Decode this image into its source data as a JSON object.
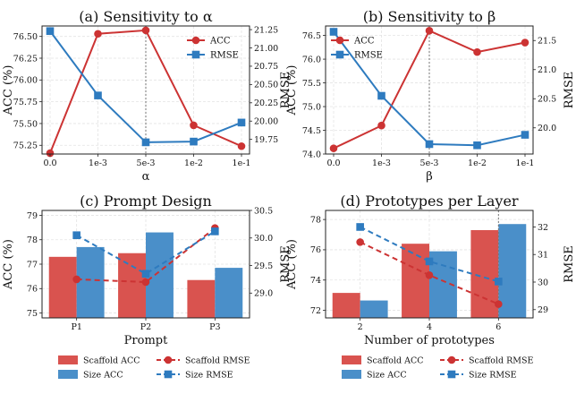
{
  "colors": {
    "red": "#cc3333",
    "blue": "#2e7bbf",
    "bar_red": "#d9534f",
    "bar_blue": "#4a8fc9",
    "grid": "#e3e3e3"
  },
  "chart_data": [
    {
      "type": "line",
      "title": "(a) Sensitivity to α",
      "xlabel": "α",
      "ylabel": "ACC (%)",
      "y2label": "RMSE",
      "categories": [
        "0.0",
        "1e-3",
        "5e-3",
        "1e-2",
        "1e-1"
      ],
      "ylim": [
        75.15,
        76.62
      ],
      "y2lim": [
        19.55,
        21.3
      ],
      "yticks": [
        75.25,
        75.5,
        75.75,
        76.0,
        76.25,
        76.5
      ],
      "y2ticks": [
        19.75,
        20.0,
        20.25,
        20.5,
        20.75,
        21.0,
        21.25
      ],
      "series": [
        {
          "name": "ACC",
          "axis": "left",
          "color": "#cc3333",
          "marker": "circle",
          "values": [
            75.16,
            76.53,
            76.57,
            75.48,
            75.24
          ]
        },
        {
          "name": "RMSE",
          "axis": "right",
          "color": "#2e7bbf",
          "marker": "square",
          "values": [
            21.23,
            20.35,
            19.71,
            19.72,
            19.98
          ]
        }
      ],
      "vline_category": "5e-3",
      "legend": "top-right",
      "grid": true
    },
    {
      "type": "line",
      "title": "(b) Sensitivity to β",
      "xlabel": "β",
      "ylabel": "ACC (%)",
      "y2label": "RMSE",
      "categories": [
        "0.0",
        "1e-3",
        "5e-3",
        "1e-2",
        "1e-1"
      ],
      "ylim": [
        74.0,
        76.7
      ],
      "y2lim": [
        19.55,
        21.75
      ],
      "yticks": [
        74.0,
        74.5,
        75.0,
        75.5,
        76.0,
        76.5
      ],
      "y2ticks": [
        20.0,
        20.5,
        21.0,
        21.5
      ],
      "series": [
        {
          "name": "ACC",
          "axis": "left",
          "color": "#cc3333",
          "marker": "circle",
          "values": [
            74.12,
            74.6,
            76.6,
            76.15,
            76.35
          ]
        },
        {
          "name": "RMSE",
          "axis": "right",
          "color": "#2e7bbf",
          "marker": "square",
          "values": [
            21.65,
            20.55,
            19.72,
            19.7,
            19.88
          ]
        }
      ],
      "vline_category": "5e-3",
      "legend": "top-left",
      "grid": true
    },
    {
      "type": "bar",
      "title": "(c) Prompt Design",
      "xlabel": "Prompt",
      "ylabel": "ACC (%)",
      "y2label": "RMSE",
      "categories": [
        "P1",
        "P2",
        "P3"
      ],
      "ylim": [
        74.8,
        79.2
      ],
      "y2lim": [
        28.55,
        30.5
      ],
      "yticks": [
        75,
        76,
        77,
        78,
        79
      ],
      "y2ticks": [
        29.0,
        29.5,
        30.0,
        30.5
      ],
      "bars": [
        {
          "name": "Scaffold ACC",
          "color": "#d9534f",
          "values": [
            77.3,
            77.45,
            76.35
          ]
        },
        {
          "name": "Size ACC",
          "color": "#4a8fc9",
          "values": [
            77.7,
            78.3,
            76.85
          ]
        }
      ],
      "lines": [
        {
          "name": "Scaffold RMSE",
          "color": "#cc3333",
          "marker": "circle",
          "values": [
            29.25,
            29.2,
            30.18
          ]
        },
        {
          "name": "Size RMSE",
          "color": "#2e7bbf",
          "marker": "square",
          "values": [
            30.05,
            29.35,
            30.12
          ]
        }
      ],
      "legend": "bottom",
      "grid": true
    },
    {
      "type": "bar",
      "title": "(d) Prototypes per Layer",
      "xlabel": "Number of prototypes",
      "ylabel": "ACC (%)",
      "y2label": "RMSE",
      "categories": [
        "2",
        "4",
        "6"
      ],
      "ylim": [
        71.5,
        78.6
      ],
      "y2lim": [
        28.7,
        32.6
      ],
      "yticks": [
        72,
        74,
        76,
        78
      ],
      "y2ticks": [
        29,
        30,
        31,
        32
      ],
      "bars": [
        {
          "name": "Scaffold ACC",
          "color": "#d9534f",
          "values": [
            73.15,
            76.4,
            77.3
          ]
        },
        {
          "name": "Size ACC",
          "color": "#4a8fc9",
          "values": [
            72.65,
            75.9,
            77.7
          ]
        }
      ],
      "lines": [
        {
          "name": "Scaffold RMSE",
          "color": "#cc3333",
          "marker": "circle",
          "values": [
            31.45,
            30.25,
            29.2
          ]
        },
        {
          "name": "Size RMSE",
          "color": "#2e7bbf",
          "marker": "square",
          "values": [
            32.0,
            30.75,
            30.02
          ]
        }
      ],
      "vline_category": "6",
      "legend": "bottom",
      "grid": true
    }
  ]
}
